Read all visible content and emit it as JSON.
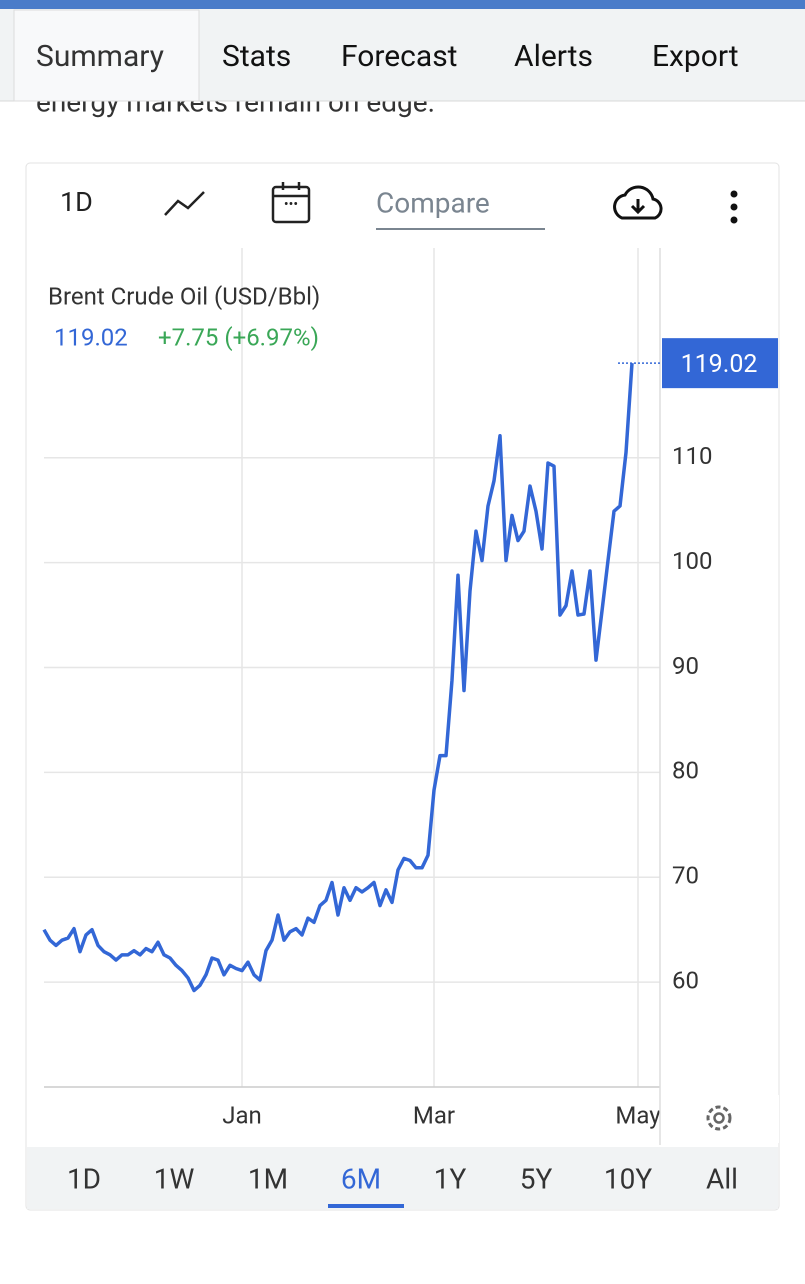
{
  "tabs": [
    "Summary",
    "Stats",
    "Forecast",
    "Alerts",
    "Export"
  ],
  "active_tab": 0,
  "snippet": "energy markets remain on edge.",
  "toolbar": {
    "interval": "1D",
    "compare": "Compare"
  },
  "chart_data": {
    "type": "line",
    "categories": [
      null,
      null,
      null,
      null,
      null,
      null,
      null,
      null,
      null,
      null,
      null,
      null,
      null,
      null,
      null,
      null,
      null,
      null,
      null,
      null,
      null,
      null,
      null,
      null,
      null,
      null,
      null,
      null,
      null,
      null,
      null,
      null,
      null,
      "Jan",
      null,
      null,
      null,
      null,
      null,
      null,
      null,
      null,
      null,
      null,
      null,
      null,
      null,
      null,
      null,
      null,
      null,
      null,
      null,
      null,
      null,
      null,
      null,
      null,
      null,
      null,
      null,
      null,
      null,
      null,
      null,
      "Mar",
      null,
      null,
      null,
      null,
      null,
      null,
      null,
      null,
      null,
      null,
      null,
      null,
      null,
      null,
      null,
      null,
      null,
      null,
      null,
      null,
      null,
      null,
      null,
      null,
      null,
      null,
      null,
      null,
      null,
      null,
      null,
      null,
      null,
      "May"
    ],
    "series": [
      {
        "name": "Brent Crude Oil (USD/Bbl)",
        "color": "#3367d6",
        "values": [
          65.0,
          64.0,
          63.5,
          64.0,
          64.2,
          65.1,
          62.9,
          64.5,
          65.0,
          63.5,
          62.9,
          62.6,
          62.1,
          62.6,
          62.6,
          63.0,
          62.6,
          63.2,
          62.9,
          63.8,
          62.6,
          62.3,
          61.6,
          61.1,
          60.4,
          59.2,
          59.7,
          60.7,
          62.3,
          62.1,
          60.7,
          61.6,
          61.3,
          61.1,
          61.9,
          60.7,
          60.2,
          63.0,
          64.0,
          66.4,
          64.0,
          64.8,
          65.1,
          64.5,
          66.1,
          65.7,
          67.3,
          67.8,
          69.5,
          66.4,
          69.0,
          67.8,
          69.0,
          68.6,
          69.0,
          69.5,
          67.3,
          68.8,
          67.6,
          70.7,
          71.8,
          71.6,
          70.9,
          70.9,
          72.1,
          78.3,
          81.6,
          81.6,
          88.8,
          98.8,
          87.8,
          97.3,
          103.0,
          100.2,
          105.4,
          107.8,
          112.1,
          100.2,
          104.5,
          102.1,
          103.0,
          107.3,
          104.9,
          101.3,
          109.5,
          109.2,
          95.0,
          95.9,
          99.2,
          95.0,
          95.1,
          99.2,
          90.7,
          95.4,
          100.2,
          104.9,
          105.4,
          110.5,
          119.02,
          null
        ]
      }
    ],
    "last_price": "119.02",
    "change": "+7.75 (+6.97%)",
    "change_color": "#3aa757",
    "ylim": [
      50,
      130
    ],
    "yticks": [
      60,
      70,
      80,
      90,
      100,
      110
    ],
    "grid": true
  },
  "ranges": [
    "1D",
    "1W",
    "1M",
    "6M",
    "1Y",
    "5Y",
    "10Y",
    "All"
  ],
  "active_range": 3
}
